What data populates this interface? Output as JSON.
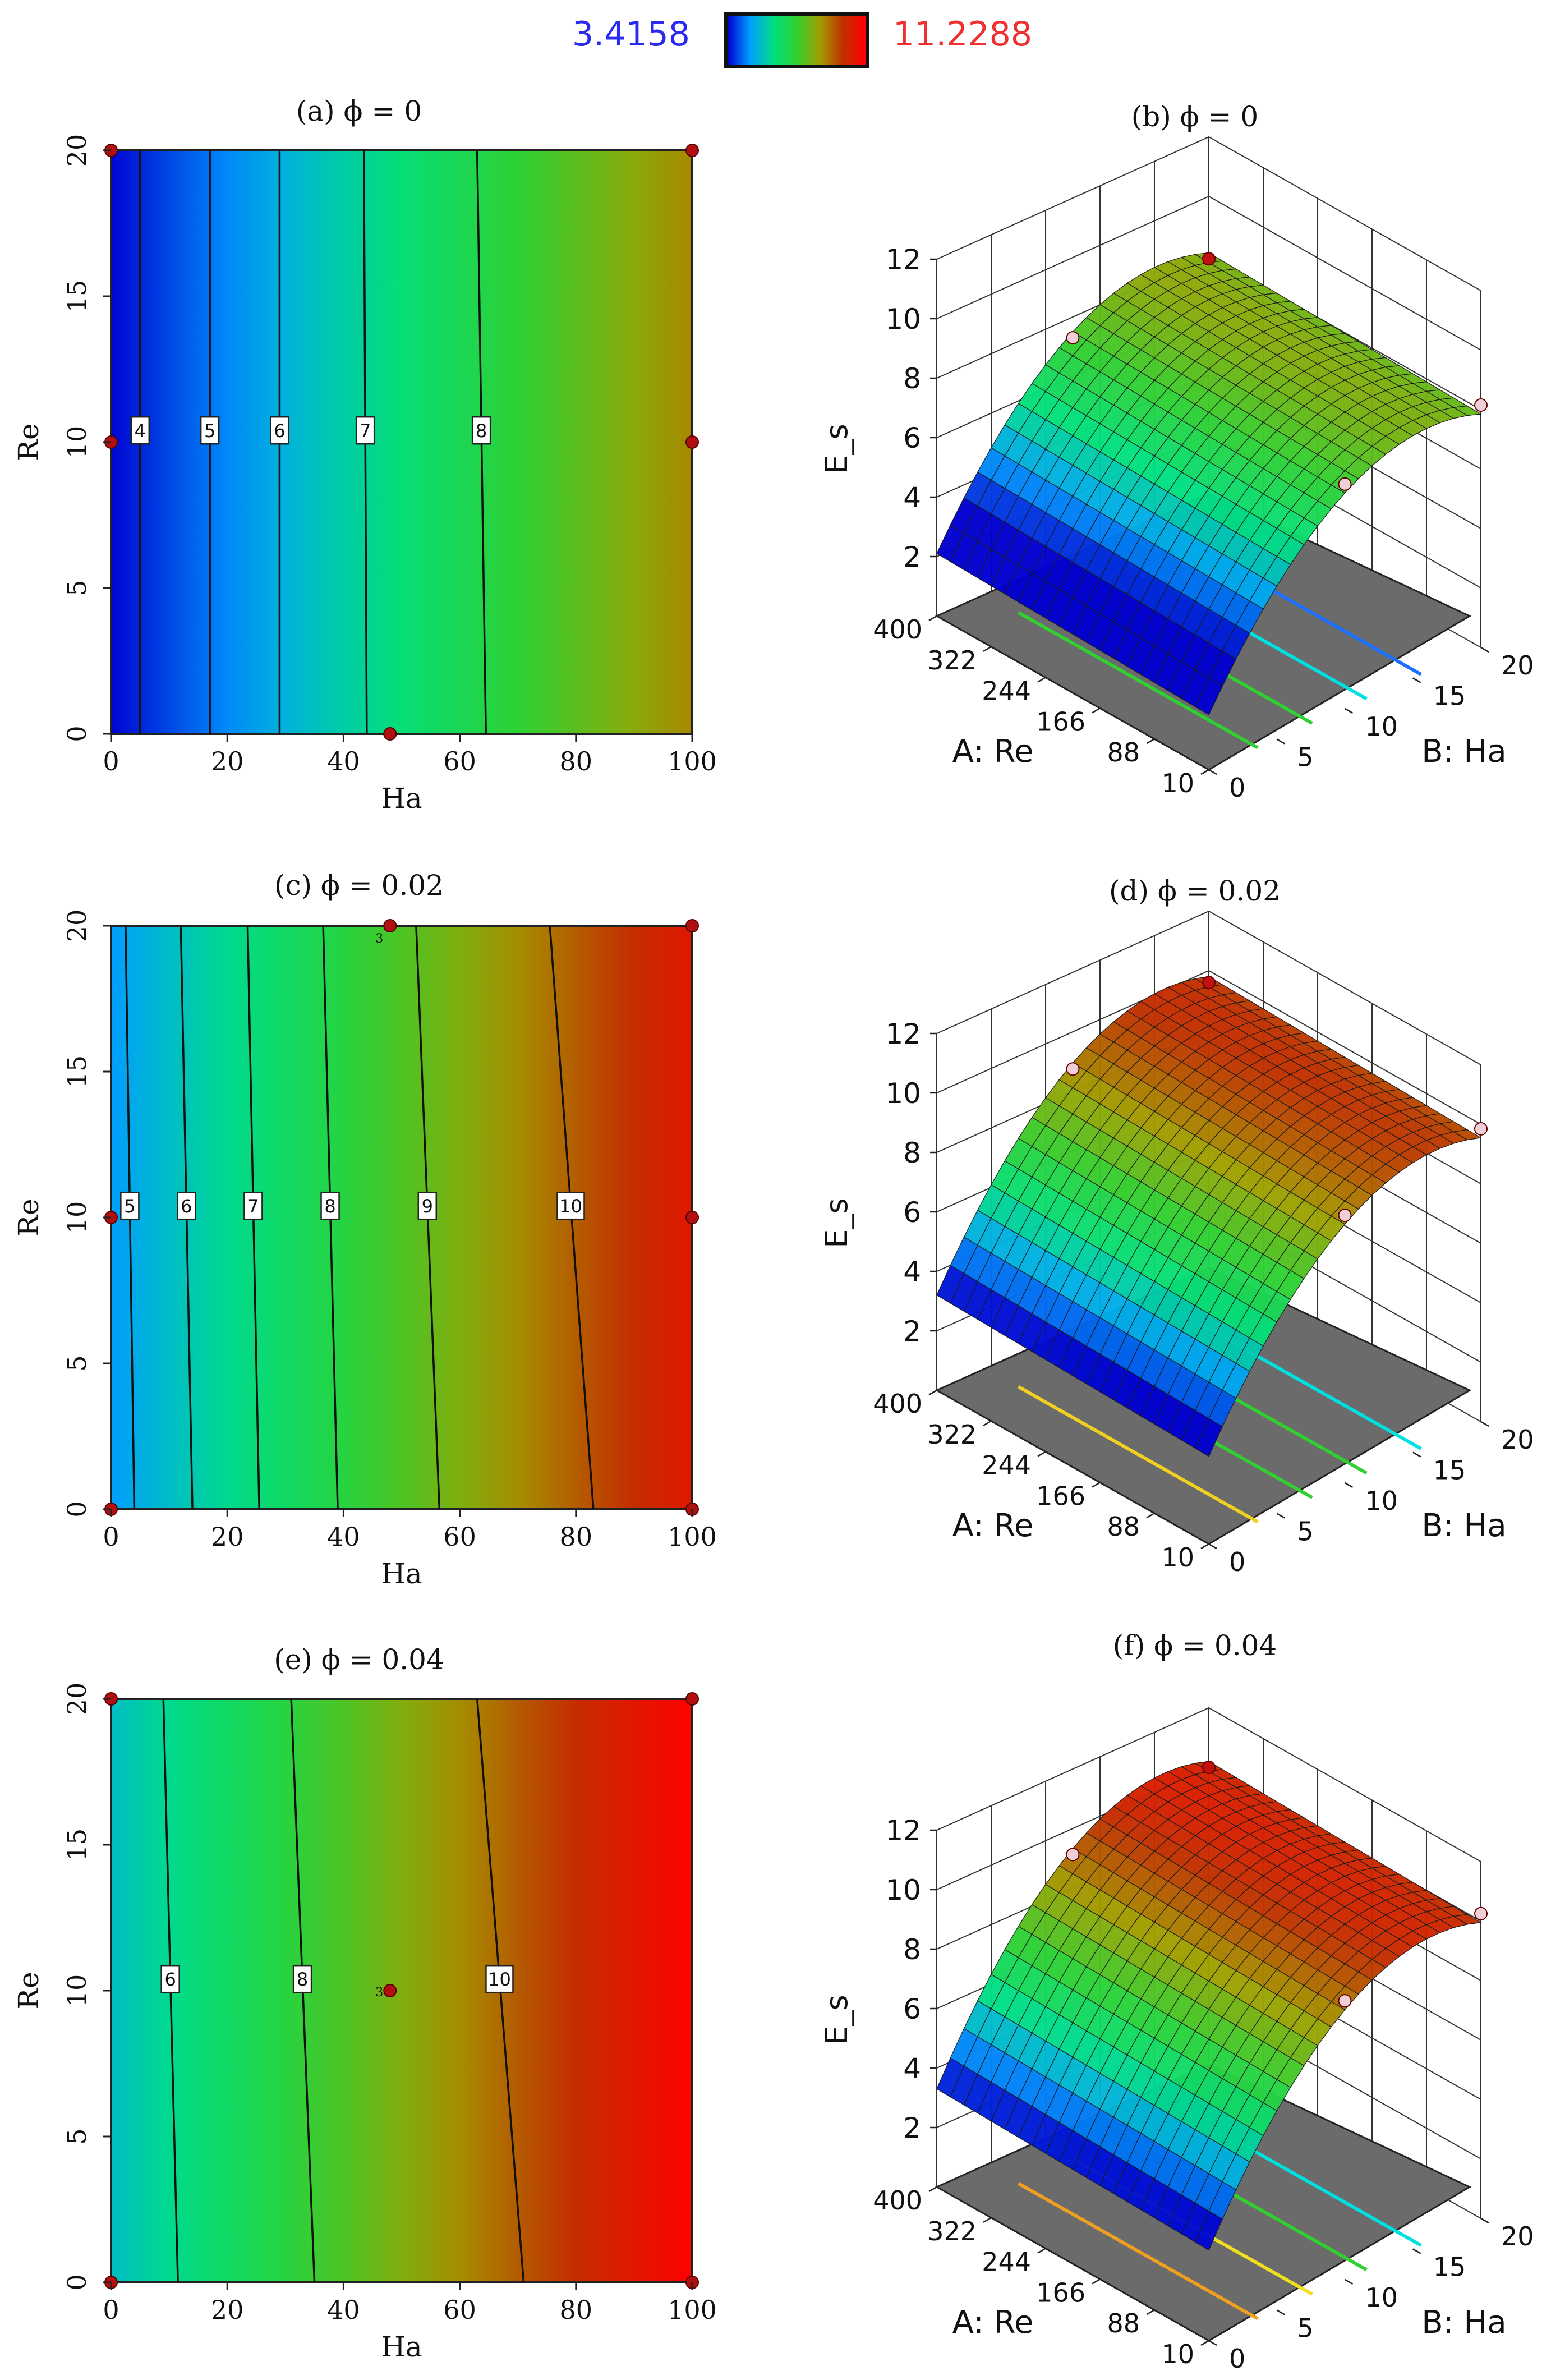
{
  "colorbar": {
    "min_label": "3.4158",
    "max_label": "11.2288",
    "colors": [
      "#0000d0",
      "#00a0ff",
      "#00e080",
      "#30d030",
      "#a0a000",
      "#c03000",
      "#ff0000"
    ]
  },
  "chart_data": [
    {
      "type": "heatmap",
      "title": "(a)   ϕ = 0",
      "xlabel": "Ha",
      "ylabel": "Re",
      "xlim": [
        0,
        100
      ],
      "ylim": [
        0,
        20
      ],
      "xticks": [
        "0",
        "20",
        "40",
        "60",
        "80",
        "100"
      ],
      "yticks": [
        "0",
        "5",
        "10",
        "15",
        "20"
      ],
      "value_range": [
        3.4158,
        11.2288
      ],
      "contours": [
        {
          "label": "4",
          "ha_top": 5,
          "ha_bottom": 5
        },
        {
          "label": "5",
          "ha_top": 17,
          "ha_bottom": 17
        },
        {
          "label": "6",
          "ha_top": 29,
          "ha_bottom": 29
        },
        {
          "label": "7",
          "ha_top": 43.5,
          "ha_bottom": 44
        },
        {
          "label": "8",
          "ha_top": 63,
          "ha_bottom": 64.5
        }
      ],
      "left_value": 3.45,
      "right_value": 8.9,
      "design_points": [
        {
          "ha": 0,
          "re": 20
        },
        {
          "ha": 100,
          "re": 20
        },
        {
          "ha": 0,
          "re": 10
        },
        {
          "ha": 100,
          "re": 10
        },
        {
          "ha": 48,
          "re": 0
        }
      ]
    },
    {
      "type": "surface3d",
      "title": "(b)   ϕ = 0",
      "zlabel": "E_s",
      "x_axis_label": "A: Re",
      "y_axis_label": "B: Ha",
      "re_ticks": [
        "400",
        "322",
        "244",
        "166",
        "88",
        "10"
      ],
      "ha_ticks": [
        "0",
        "5",
        "10",
        "15",
        "20"
      ],
      "z_ticks": [
        "2",
        "4",
        "6",
        "8",
        "10",
        "12"
      ],
      "z_range": [
        0,
        12
      ],
      "z_back": 8.1,
      "z_peak": 9.3,
      "z_front": 2.1,
      "floor_contours": [
        "#30d030",
        "#30d030",
        "#00e0e0",
        "#1a70ff"
      ]
    },
    {
      "type": "heatmap",
      "title": "(c)   ϕ = 0.02",
      "xlabel": "Ha",
      "ylabel": "Re",
      "xlim": [
        0,
        100
      ],
      "ylim": [
        0,
        20
      ],
      "xticks": [
        "0",
        "20",
        "40",
        "60",
        "80",
        "100"
      ],
      "yticks": [
        "0",
        "5",
        "10",
        "15",
        "20"
      ],
      "value_range": [
        3.4158,
        11.2288
      ],
      "contours": [
        {
          "label": "5",
          "ha_top": 2.5,
          "ha_bottom": 4
        },
        {
          "label": "6",
          "ha_top": 12,
          "ha_bottom": 14
        },
        {
          "label": "7",
          "ha_top": 23.5,
          "ha_bottom": 25.5
        },
        {
          "label": "8",
          "ha_top": 36.5,
          "ha_bottom": 39
        },
        {
          "label": "9",
          "ha_top": 52.5,
          "ha_bottom": 56.5
        },
        {
          "label": "10",
          "ha_top": 75.5,
          "ha_bottom": 83
        }
      ],
      "left_value": 4.7,
      "right_value": 10.6,
      "design_points": [
        {
          "ha": 48,
          "re": 20
        },
        {
          "ha": 100,
          "re": 20
        },
        {
          "ha": 0,
          "re": 10
        },
        {
          "ha": 100,
          "re": 10
        },
        {
          "ha": 0,
          "re": 0
        },
        {
          "ha": 100,
          "re": 0
        }
      ],
      "point_note": "3"
    },
    {
      "type": "surface3d",
      "title": "(d)   ϕ = 0.02",
      "zlabel": "E_s",
      "x_axis_label": "A: Re",
      "y_axis_label": "B: Ha",
      "re_ticks": [
        "400",
        "322",
        "244",
        "166",
        "88",
        "10"
      ],
      "ha_ticks": [
        "0",
        "5",
        "10",
        "15",
        "20"
      ],
      "z_ticks": [
        "2",
        "4",
        "6",
        "8",
        "10",
        "12"
      ],
      "z_range": [
        0,
        12
      ],
      "z_back": 9.8,
      "z_peak": 10.8,
      "z_front": 3.2,
      "floor_contours": [
        "#f0d020",
        "#30d030",
        "#30d030",
        "#00e0e0"
      ]
    },
    {
      "type": "heatmap",
      "title": "(e)   ϕ = 0.04",
      "xlabel": "Ha",
      "ylabel": "Re",
      "xlim": [
        0,
        100
      ],
      "ylim": [
        0,
        20
      ],
      "xticks": [
        "0",
        "20",
        "40",
        "60",
        "80",
        "100"
      ],
      "yticks": [
        "0",
        "5",
        "10",
        "15",
        "20"
      ],
      "value_range": [
        3.4158,
        11.2288
      ],
      "contours": [
        {
          "label": "6",
          "ha_top": 9,
          "ha_bottom": 11.5
        },
        {
          "label": "8",
          "ha_top": 31,
          "ha_bottom": 35
        },
        {
          "label": "10",
          "ha_top": 63,
          "ha_bottom": 71
        }
      ],
      "left_value": 5.3,
      "right_value": 11.2,
      "design_points": [
        {
          "ha": 0,
          "re": 20
        },
        {
          "ha": 100,
          "re": 20
        },
        {
          "ha": 48,
          "re": 10
        },
        {
          "ha": 0,
          "re": 0
        },
        {
          "ha": 100,
          "re": 0
        }
      ],
      "point_note": "3"
    },
    {
      "type": "surface3d",
      "title": "(f)   ϕ = 0.04",
      "zlabel": "E_s",
      "x_axis_label": "A: Re",
      "y_axis_label": "B: Ha",
      "re_ticks": [
        "400",
        "322",
        "244",
        "166",
        "88",
        "10"
      ],
      "ha_ticks": [
        "0",
        "5",
        "10",
        "15",
        "20"
      ],
      "z_ticks": [
        "2",
        "4",
        "6",
        "8",
        "10",
        "12"
      ],
      "z_range": [
        0,
        12
      ],
      "z_back": 10.2,
      "z_peak": 11.3,
      "z_front": 3.3,
      "floor_contours": [
        "#f0a020",
        "#f0e020",
        "#30d030",
        "#00e0e0"
      ]
    }
  ]
}
